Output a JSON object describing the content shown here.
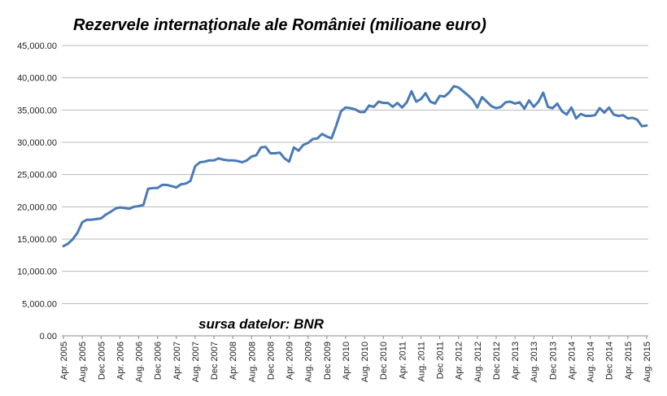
{
  "chart_data": {
    "type": "line",
    "title": "Rezervele internaţionale ale României (milioane euro)",
    "source_note": "sursa datelor: BNR",
    "xlabel": "",
    "ylabel": "",
    "ylim": [
      0,
      45000
    ],
    "y_ticks": [
      "0.00",
      "5,000.00",
      "10,000.00",
      "15,000.00",
      "20,000.00",
      "25,000.00",
      "30,000.00",
      "35,000.00",
      "40,000.00",
      "45,000.00"
    ],
    "x_tick_labels": [
      "Apr. 2005",
      "Aug. 2005",
      "Dec 2005",
      "Apr. 2006",
      "Aug. 2006",
      "Dec 2006",
      "Apr. 2007",
      "Aug. 2007",
      "Dec 2007",
      "Apr. 2008",
      "Aug. 2008",
      "Dec 2008",
      "Apr. 2009",
      "Aug. 2009",
      "Dec 2009",
      "Apr. 2010",
      "Aug. 2010",
      "Dec 2010",
      "Apr. 2011",
      "Aug. 2011",
      "Dec 2011",
      "Apr. 2012",
      "Aug. 2012",
      "Dec 2012",
      "Apr. 2013",
      "Aug. 2013",
      "Dec 2013",
      "Apr. 2014",
      "Aug. 2014",
      "Dec 2014",
      "Apr. 2015",
      "Aug. 2015"
    ],
    "grid": true,
    "legend": "none",
    "series": [
      {
        "color": "#4a7ab5",
        "x_start": "Apr. 2005",
        "x_end": "Aug. 2015",
        "frequency": "monthly",
        "values": [
          13900,
          14300,
          15000,
          16000,
          17600,
          18000,
          18000,
          18100,
          18200,
          18800,
          19200,
          19700,
          19900,
          19800,
          19700,
          20000,
          20100,
          20300,
          22800,
          22900,
          22900,
          23400,
          23400,
          23200,
          23000,
          23500,
          23600,
          24000,
          26300,
          26900,
          27000,
          27200,
          27200,
          27500,
          27300,
          27200,
          27200,
          27100,
          26900,
          27200,
          27800,
          28000,
          29200,
          29300,
          28300,
          28300,
          28400,
          27500,
          27000,
          29200,
          28700,
          29600,
          29900,
          30500,
          30600,
          31300,
          30900,
          30600,
          32600,
          34800,
          35400,
          35300,
          35100,
          34700,
          34700,
          35700,
          35500,
          36300,
          36100,
          36100,
          35500,
          36100,
          35400,
          36200,
          37900,
          36300,
          36700,
          37600,
          36300,
          36000,
          37200,
          37100,
          37700,
          38700,
          38500,
          37900,
          37300,
          36600,
          35400,
          37000,
          36300,
          35600,
          35300,
          35500,
          36200,
          36300,
          36000,
          36200,
          35200,
          36500,
          35500,
          36300,
          37700,
          35500,
          35300,
          36000,
          34800,
          34300,
          35400,
          33700,
          34400,
          34100,
          34100,
          34200,
          35300,
          34600,
          35400,
          34300,
          34100,
          34200,
          33700,
          33800,
          33500,
          32500,
          32600
        ]
      }
    ]
  }
}
